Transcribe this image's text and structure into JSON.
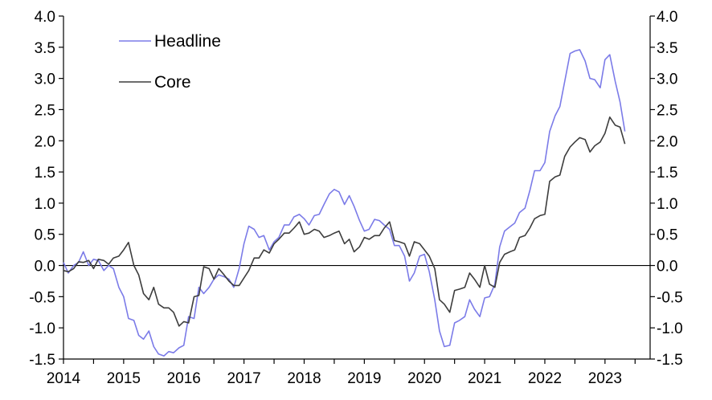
{
  "chart_data": {
    "type": "line",
    "title": "",
    "xlabel": "",
    "ylabel": "",
    "ylim": [
      -1.5,
      4.0
    ],
    "xlim": [
      2014.0,
      2023.75
    ],
    "yticks": [
      "4.0",
      "3.5",
      "3.0",
      "2.5",
      "2.0",
      "1.5",
      "1.0",
      "0.5",
      "0.0",
      "-0.5",
      "-1.0",
      "-1.5"
    ],
    "xticks": [
      "2014",
      "2015",
      "2016",
      "2017",
      "2018",
      "2019",
      "2020",
      "2021",
      "2022",
      "2023"
    ],
    "y_axis_sides": [
      "left",
      "right"
    ],
    "zero_line": true,
    "grid": false,
    "legend_position": "top-left",
    "series": [
      {
        "name": "Headline",
        "color": "#7b7be8",
        "x": [
          2014.0,
          2014.08,
          2014.17,
          2014.25,
          2014.33,
          2014.42,
          2014.5,
          2014.58,
          2014.67,
          2014.75,
          2014.83,
          2014.92,
          2015.0,
          2015.08,
          2015.17,
          2015.25,
          2015.33,
          2015.42,
          2015.5,
          2015.58,
          2015.67,
          2015.75,
          2015.83,
          2015.92,
          2016.0,
          2016.08,
          2016.17,
          2016.25,
          2016.33,
          2016.42,
          2016.5,
          2016.58,
          2016.67,
          2016.75,
          2016.83,
          2016.92,
          2017.0,
          2017.08,
          2017.17,
          2017.25,
          2017.33,
          2017.42,
          2017.5,
          2017.58,
          2017.67,
          2017.75,
          2017.83,
          2017.92,
          2018.0,
          2018.08,
          2018.17,
          2018.25,
          2018.33,
          2018.42,
          2018.5,
          2018.58,
          2018.67,
          2018.75,
          2018.83,
          2018.92,
          2019.0,
          2019.08,
          2019.17,
          2019.25,
          2019.33,
          2019.42,
          2019.5,
          2019.58,
          2019.67,
          2019.75,
          2019.83,
          2019.92,
          2020.0,
          2020.08,
          2020.17,
          2020.25,
          2020.33,
          2020.42,
          2020.5,
          2020.58,
          2020.67,
          2020.75,
          2020.83,
          2020.92,
          2021.0,
          2021.08,
          2021.17,
          2021.25,
          2021.33,
          2021.42,
          2021.5,
          2021.58,
          2021.67,
          2021.75,
          2021.83,
          2021.92,
          2022.0,
          2022.08,
          2022.17,
          2022.25,
          2022.33,
          2022.42,
          2022.5,
          2022.58,
          2022.67,
          2022.75,
          2022.83,
          2022.92,
          2023.0,
          2023.08,
          2023.17,
          2023.25,
          2023.33
        ],
        "values": [
          0.05,
          -0.12,
          0.0,
          0.05,
          0.22,
          0.0,
          0.1,
          0.08,
          -0.08,
          0.0,
          -0.05,
          -0.35,
          -0.5,
          -0.85,
          -0.88,
          -1.12,
          -1.18,
          -1.05,
          -1.3,
          -1.42,
          -1.45,
          -1.38,
          -1.4,
          -1.32,
          -1.28,
          -0.82,
          -0.85,
          -0.35,
          -0.45,
          -0.35,
          -0.22,
          -0.15,
          -0.18,
          -0.22,
          -0.35,
          -0.05,
          0.35,
          0.63,
          0.58,
          0.45,
          0.48,
          0.25,
          0.38,
          0.45,
          0.65,
          0.65,
          0.78,
          0.82,
          0.75,
          0.65,
          0.8,
          0.82,
          0.98,
          1.15,
          1.22,
          1.18,
          0.98,
          1.12,
          0.95,
          0.72,
          0.55,
          0.58,
          0.74,
          0.72,
          0.65,
          0.58,
          0.32,
          0.32,
          0.15,
          -0.25,
          -0.12,
          0.15,
          0.18,
          -0.1,
          -0.55,
          -1.05,
          -1.3,
          -1.28,
          -0.92,
          -0.88,
          -0.82,
          -0.55,
          -0.7,
          -0.82,
          -0.52,
          -0.5,
          -0.3,
          0.3,
          0.55,
          0.62,
          0.68,
          0.85,
          0.92,
          1.2,
          1.52,
          1.52,
          1.65,
          2.15,
          2.4,
          2.55,
          2.95,
          3.4,
          3.44,
          3.46,
          3.28,
          3.0,
          2.98,
          2.85,
          3.3,
          3.38,
          2.95,
          2.62,
          2.15
        ]
      },
      {
        "name": "Core",
        "color": "#3d3d3d",
        "x": [
          2014.0,
          2014.08,
          2014.17,
          2014.25,
          2014.33,
          2014.42,
          2014.5,
          2014.58,
          2014.67,
          2014.75,
          2014.83,
          2014.92,
          2015.0,
          2015.08,
          2015.17,
          2015.25,
          2015.33,
          2015.42,
          2015.5,
          2015.58,
          2015.67,
          2015.75,
          2015.83,
          2015.92,
          2016.0,
          2016.08,
          2016.17,
          2016.25,
          2016.33,
          2016.42,
          2016.5,
          2016.58,
          2016.67,
          2016.75,
          2016.83,
          2016.92,
          2017.0,
          2017.08,
          2017.17,
          2017.25,
          2017.33,
          2017.42,
          2017.5,
          2017.58,
          2017.67,
          2017.75,
          2017.83,
          2017.92,
          2018.0,
          2018.08,
          2018.17,
          2018.25,
          2018.33,
          2018.42,
          2018.5,
          2018.58,
          2018.67,
          2018.75,
          2018.83,
          2018.92,
          2019.0,
          2019.08,
          2019.17,
          2019.25,
          2019.33,
          2019.42,
          2019.5,
          2019.58,
          2019.67,
          2019.75,
          2019.83,
          2019.92,
          2020.0,
          2020.08,
          2020.17,
          2020.25,
          2020.33,
          2020.42,
          2020.5,
          2020.58,
          2020.67,
          2020.75,
          2020.83,
          2020.92,
          2021.0,
          2021.08,
          2021.17,
          2021.25,
          2021.33,
          2021.42,
          2021.5,
          2021.58,
          2021.67,
          2021.75,
          2021.83,
          2021.92,
          2022.0,
          2022.08,
          2022.17,
          2022.25,
          2022.33,
          2022.42,
          2022.5,
          2022.58,
          2022.67,
          2022.75,
          2022.83,
          2022.92,
          2023.0,
          2023.08,
          2023.17,
          2023.25,
          2023.33
        ],
        "values": [
          -0.08,
          -0.1,
          -0.05,
          0.06,
          0.05,
          0.08,
          -0.05,
          0.1,
          0.08,
          0.02,
          0.12,
          0.15,
          0.25,
          0.37,
          0.0,
          -0.15,
          -0.45,
          -0.55,
          -0.35,
          -0.62,
          -0.68,
          -0.68,
          -0.75,
          -0.97,
          -0.9,
          -0.92,
          -0.5,
          -0.48,
          -0.02,
          -0.05,
          -0.22,
          -0.05,
          -0.15,
          -0.25,
          -0.32,
          -0.32,
          -0.2,
          -0.08,
          0.12,
          0.12,
          0.25,
          0.2,
          0.35,
          0.42,
          0.52,
          0.52,
          0.6,
          0.7,
          0.5,
          0.52,
          0.58,
          0.55,
          0.45,
          0.48,
          0.52,
          0.55,
          0.35,
          0.42,
          0.22,
          0.3,
          0.45,
          0.42,
          0.48,
          0.48,
          0.6,
          0.7,
          0.4,
          0.38,
          0.35,
          0.15,
          0.38,
          0.35,
          0.25,
          0.15,
          -0.05,
          -0.55,
          -0.62,
          -0.75,
          -0.4,
          -0.38,
          -0.35,
          -0.12,
          -0.22,
          -0.35,
          0.0,
          -0.3,
          -0.35,
          0.05,
          0.18,
          0.22,
          0.25,
          0.45,
          0.48,
          0.6,
          0.75,
          0.8,
          0.82,
          1.35,
          1.42,
          1.45,
          1.75,
          1.9,
          1.98,
          2.05,
          2.02,
          1.82,
          1.92,
          1.98,
          2.12,
          2.38,
          2.25,
          2.22,
          1.95
        ]
      }
    ]
  }
}
